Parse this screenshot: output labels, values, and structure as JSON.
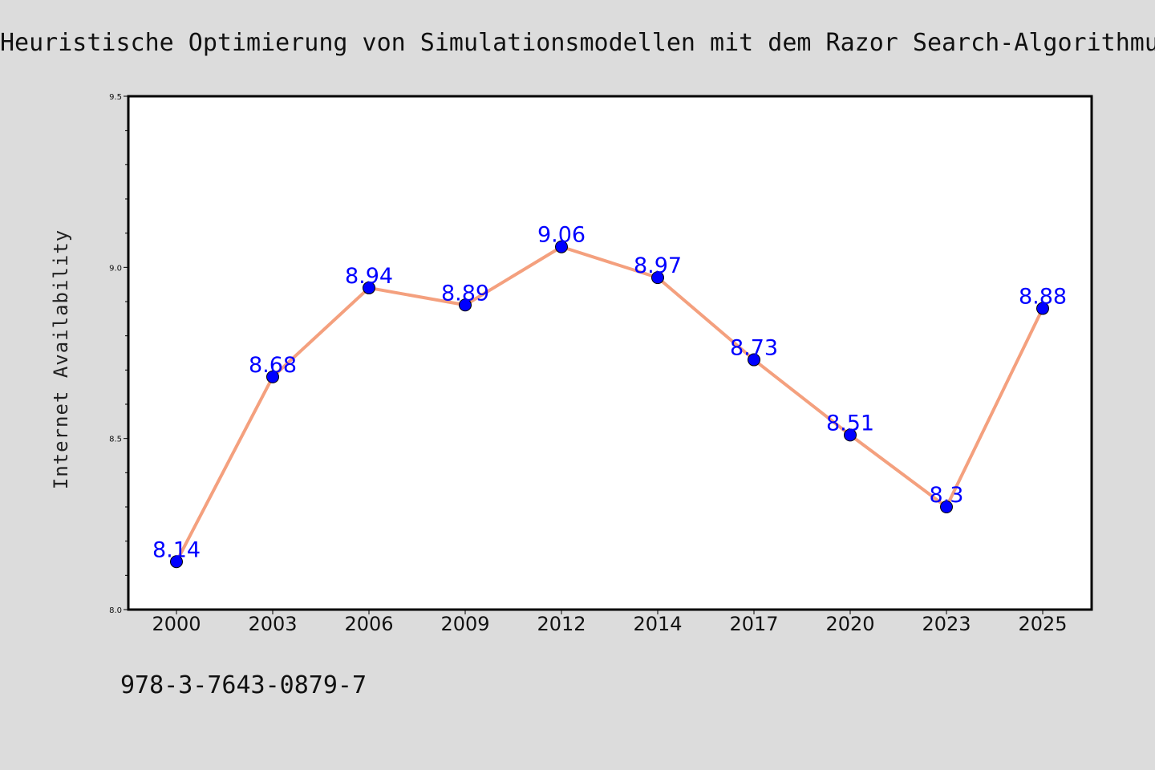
{
  "chart_data": {
    "type": "line",
    "title": "Heuristische Optimierung von Simulationsmodellen mit dem Razor Search-Algorithmus",
    "xlabel": "",
    "ylabel": "Internet Availability",
    "categories": [
      "2000",
      "2003",
      "2006",
      "2009",
      "2012",
      "2014",
      "2017",
      "2020",
      "2023",
      "2025"
    ],
    "series": [
      {
        "values": [
          8.14,
          8.68,
          8.94,
          8.89,
          9.06,
          8.97,
          8.73,
          8.51,
          8.3,
          8.88
        ],
        "labels": [
          "8.14",
          "8.68",
          "8.94",
          "8.89",
          "9.06",
          "8.97",
          "8.73",
          "8.51",
          "8.3",
          "8.88"
        ],
        "line_color": "#f4a07e",
        "marker_color": "#0000ff",
        "label_color": "#0000ff"
      }
    ],
    "ylim": [
      8.0,
      9.5
    ],
    "yticks": [
      "8.0",
      "8.5",
      "9.0",
      "9.5"
    ],
    "yminor_step": 0.1,
    "grid": false,
    "legend": "none"
  },
  "footer": {
    "isbn": "978-3-7643-0879-7"
  },
  "colors": {
    "background": "#dcdcdc",
    "plot_area": "#ffffff",
    "axis": "#000000"
  }
}
